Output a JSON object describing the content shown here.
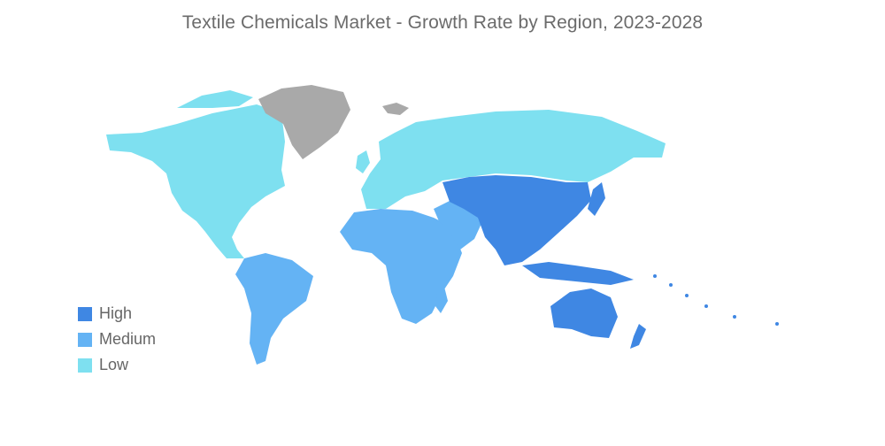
{
  "title": "Textile Chemicals Market - Growth Rate by Region, 2023-2028",
  "colors": {
    "high": "#3f87e3",
    "medium": "#64b3f4",
    "low": "#7ee0f0",
    "no_data": "#a9a9a9"
  },
  "legend": [
    {
      "label": "High",
      "color": "#3f87e3"
    },
    {
      "label": "Medium",
      "color": "#64b3f4"
    },
    {
      "label": "Low",
      "color": "#7ee0f0"
    }
  ],
  "regions": [
    {
      "name": "North America",
      "level": "low"
    },
    {
      "name": "Europe",
      "level": "low"
    },
    {
      "name": "Russia",
      "level": "low"
    },
    {
      "name": "South America",
      "level": "medium"
    },
    {
      "name": "Middle East and Africa",
      "level": "medium"
    },
    {
      "name": "Asia-Pacific",
      "level": "high"
    },
    {
      "name": "Greenland",
      "level": "no_data"
    }
  ]
}
